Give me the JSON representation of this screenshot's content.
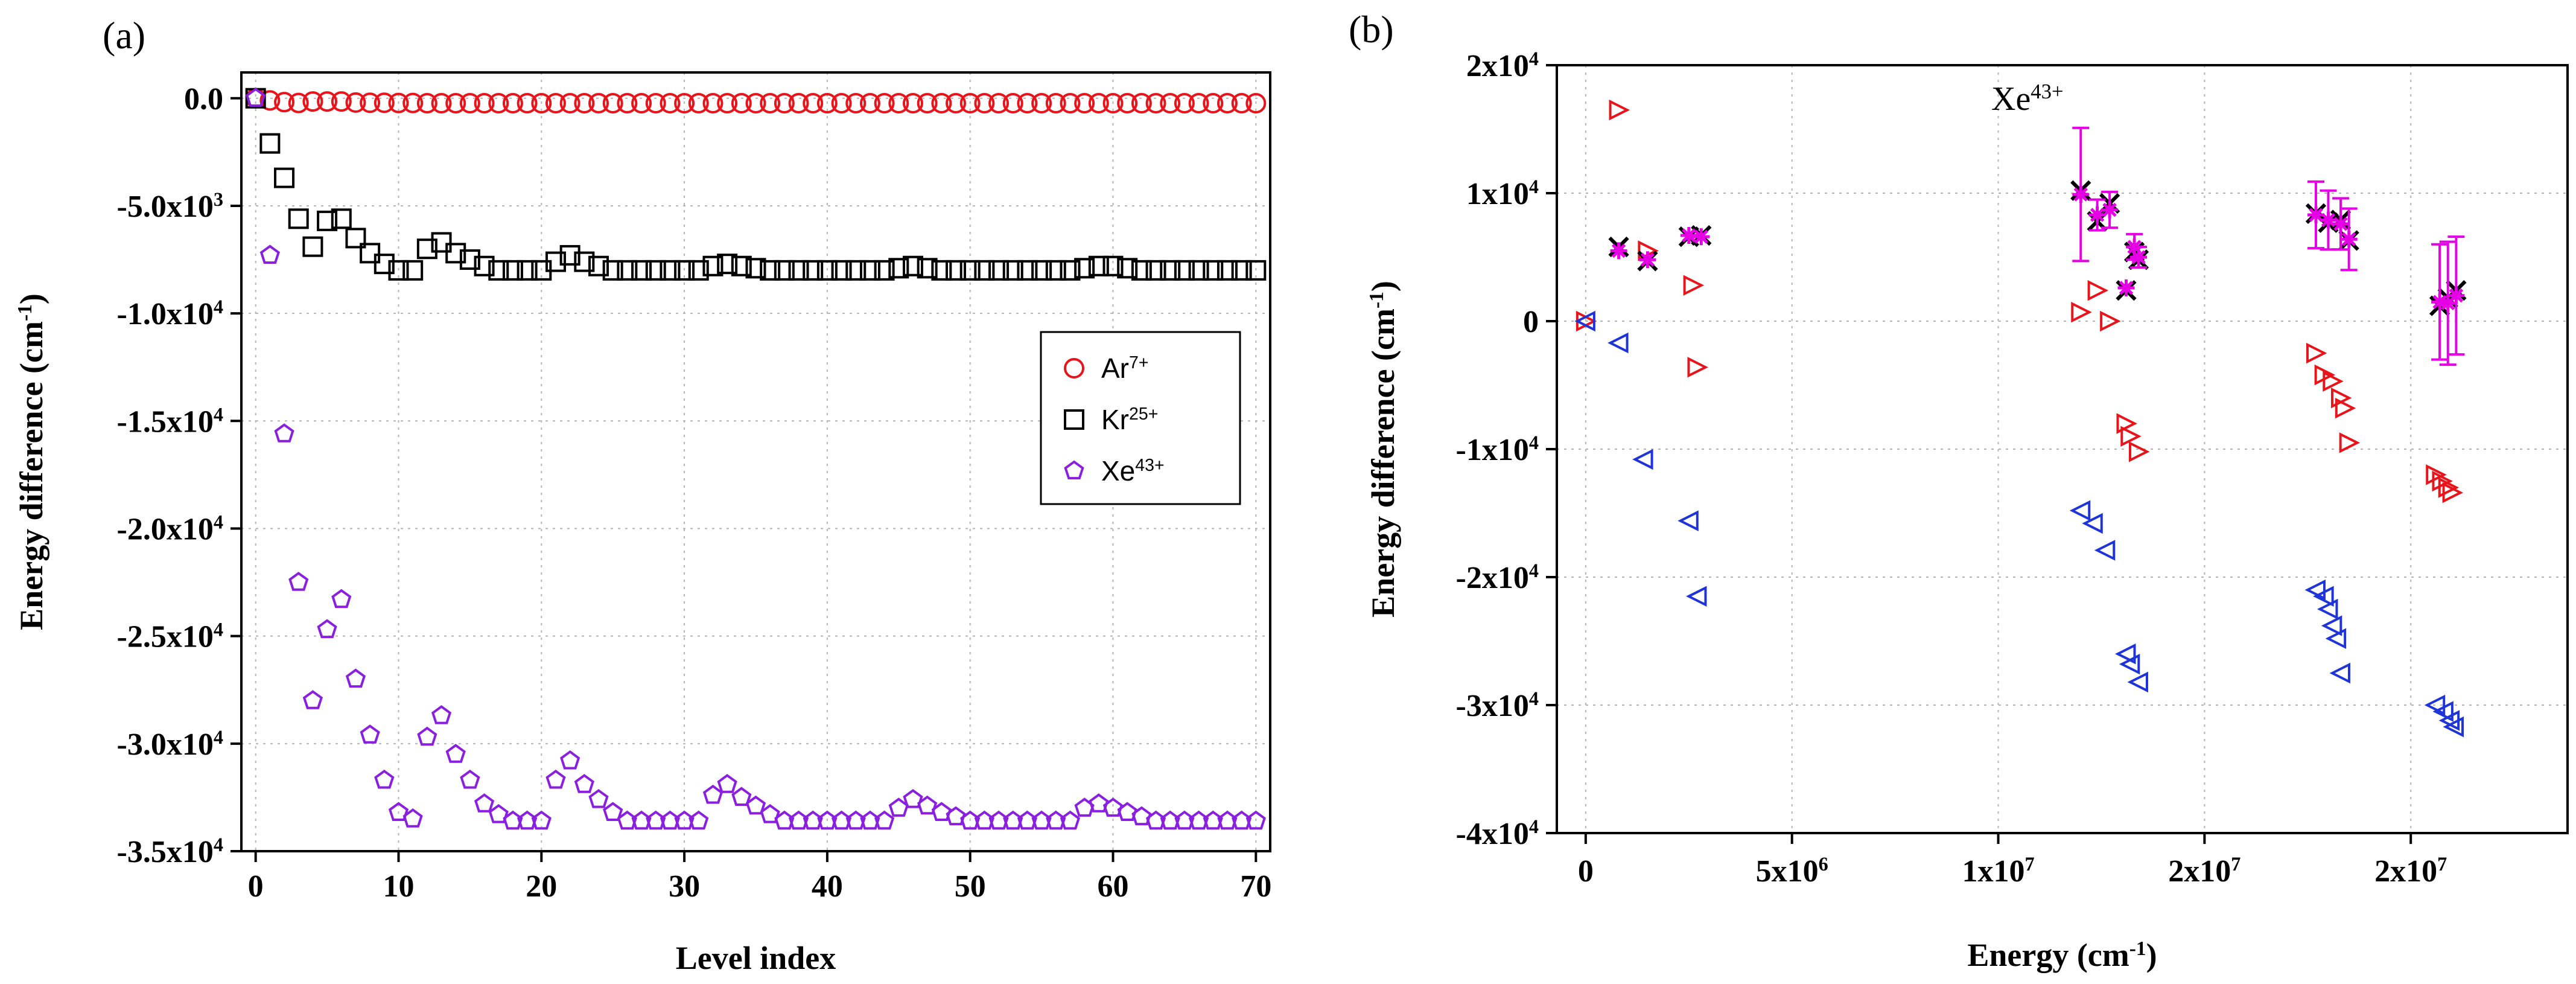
{
  "chart_data": [
    {
      "type": "scatter",
      "panel_label": "(a)",
      "title": "",
      "xlabel": "Level index",
      "ylabel": "Energy difference (cm",
      "ylabel_sup": "-1",
      "ylabel_close": ")",
      "xlim": [
        -1,
        71
      ],
      "ylim": [
        -35000,
        1200
      ],
      "x_ticks": [
        0,
        10,
        20,
        30,
        40,
        50,
        60,
        70
      ],
      "y_ticks": [
        {
          "value": 0,
          "label": "0.0",
          "sup": ""
        },
        {
          "value": -5000,
          "label": "-5.0x10",
          "sup": "3"
        },
        {
          "value": -10000,
          "label": "-1.0x10",
          "sup": "4"
        },
        {
          "value": -15000,
          "label": "-1.5x10",
          "sup": "4"
        },
        {
          "value": -20000,
          "label": "-2.0x10",
          "sup": "4"
        },
        {
          "value": -25000,
          "label": "-2.5x10",
          "sup": "4"
        },
        {
          "value": -30000,
          "label": "-3.0x10",
          "sup": "4"
        },
        {
          "value": -35000,
          "label": "-3.5x10",
          "sup": "4"
        }
      ],
      "grid": true,
      "legend_position": "right-middle",
      "series": [
        {
          "name": "Ar",
          "name_sup": "7+",
          "marker": "circle",
          "color": "#e8141b",
          "x": [
            0,
            1,
            2,
            3,
            4,
            5,
            6,
            7,
            8,
            9,
            10,
            11,
            12,
            13,
            14,
            15,
            16,
            17,
            18,
            19,
            20,
            21,
            22,
            23,
            24,
            25,
            26,
            27,
            28,
            29,
            30,
            31,
            32,
            33,
            34,
            35,
            36,
            37,
            38,
            39,
            40,
            41,
            42,
            43,
            44,
            45,
            46,
            47,
            48,
            49,
            50,
            51,
            52,
            53,
            54,
            55,
            56,
            57,
            58,
            59,
            60,
            61,
            62,
            63,
            64,
            65,
            66,
            67,
            68,
            69,
            70
          ],
          "y": [
            0,
            -100,
            -180,
            -220,
            -150,
            -150,
            -150,
            -200,
            -210,
            -210,
            -220,
            -220,
            -230,
            -230,
            -230,
            -230,
            -230,
            -230,
            -230,
            -230,
            -230,
            -230,
            -230,
            -230,
            -230,
            -230,
            -230,
            -230,
            -230,
            -230,
            -230,
            -230,
            -230,
            -230,
            -230,
            -230,
            -230,
            -230,
            -230,
            -230,
            -230,
            -230,
            -230,
            -230,
            -230,
            -230,
            -230,
            -230,
            -230,
            -230,
            -230,
            -230,
            -230,
            -230,
            -230,
            -230,
            -230,
            -230,
            -230,
            -230,
            -230,
            -230,
            -230,
            -230,
            -230,
            -230,
            -230,
            -230,
            -230,
            -230,
            -230
          ]
        },
        {
          "name": "Kr",
          "name_sup": "25+",
          "marker": "square",
          "color": "#000000",
          "x": [
            0,
            1,
            2,
            3,
            4,
            5,
            6,
            7,
            8,
            9,
            10,
            11,
            12,
            13,
            14,
            15,
            16,
            17,
            18,
            19,
            20,
            21,
            22,
            23,
            24,
            25,
            26,
            27,
            28,
            29,
            30,
            31,
            32,
            33,
            34,
            35,
            36,
            37,
            38,
            39,
            40,
            41,
            42,
            43,
            44,
            45,
            46,
            47,
            48,
            49,
            50,
            51,
            52,
            53,
            54,
            55,
            56,
            57,
            58,
            59,
            60,
            61,
            62,
            63,
            64,
            65,
            66,
            67,
            68,
            69,
            70
          ],
          "y": [
            0,
            -2100,
            -3700,
            -5600,
            -6900,
            -5700,
            -5600,
            -6500,
            -7200,
            -7700,
            -8000,
            -8000,
            -7000,
            -6700,
            -7200,
            -7500,
            -7800,
            -8000,
            -8000,
            -8000,
            -8000,
            -7600,
            -7300,
            -7600,
            -7800,
            -8000,
            -8000,
            -8000,
            -8000,
            -8000,
            -8000,
            -8000,
            -7800,
            -7700,
            -7800,
            -7900,
            -8000,
            -8000,
            -8000,
            -8000,
            -8000,
            -8000,
            -8000,
            -8000,
            -8000,
            -7900,
            -7800,
            -7900,
            -8000,
            -8000,
            -8000,
            -8000,
            -8000,
            -8000,
            -8000,
            -8000,
            -8000,
            -8000,
            -7900,
            -7800,
            -7800,
            -7900,
            -8000,
            -8000,
            -8000,
            -8000,
            -8000,
            -8000,
            -8000,
            -8000,
            -8000
          ]
        },
        {
          "name": "Xe",
          "name_sup": "43+",
          "marker": "pentagon",
          "color": "#8b1fe0",
          "x": [
            0,
            1,
            2,
            3,
            4,
            5,
            6,
            7,
            8,
            9,
            10,
            11,
            12,
            13,
            14,
            15,
            16,
            17,
            18,
            19,
            20,
            21,
            22,
            23,
            24,
            25,
            26,
            27,
            28,
            29,
            30,
            31,
            32,
            33,
            34,
            35,
            36,
            37,
            38,
            39,
            40,
            41,
            42,
            43,
            44,
            45,
            46,
            47,
            48,
            49,
            50,
            51,
            52,
            53,
            54,
            55,
            56,
            57,
            58,
            59,
            60,
            61,
            62,
            63,
            64,
            65,
            66,
            67,
            68,
            69,
            70
          ],
          "y": [
            0,
            -7300,
            -15600,
            -22500,
            -28000,
            -24700,
            -23300,
            -27000,
            -29600,
            -31700,
            -33200,
            -33500,
            -29700,
            -28700,
            -30500,
            -31700,
            -32800,
            -33300,
            -33600,
            -33600,
            -33600,
            -31700,
            -30800,
            -31900,
            -32600,
            -33200,
            -33600,
            -33600,
            -33600,
            -33600,
            -33600,
            -33600,
            -32400,
            -31900,
            -32500,
            -32900,
            -33300,
            -33600,
            -33600,
            -33600,
            -33600,
            -33600,
            -33600,
            -33600,
            -33600,
            -33000,
            -32600,
            -32900,
            -33200,
            -33400,
            -33600,
            -33600,
            -33600,
            -33600,
            -33600,
            -33600,
            -33600,
            -33600,
            -33000,
            -32800,
            -33000,
            -33200,
            -33400,
            -33600,
            -33600,
            -33600,
            -33600,
            -33600,
            -33600,
            -33600,
            -33600
          ]
        }
      ]
    },
    {
      "type": "scatter",
      "panel_label": "(b)",
      "title": "",
      "annotation": "Xe",
      "annotation_sup": "43+",
      "xlabel": "Energy (cm",
      "xlabel_sup": "-1",
      "xlabel_close": ")",
      "ylabel": "Energy difference (cm",
      "ylabel_sup": "-1",
      "ylabel_close": ")",
      "xlim": [
        -700000,
        23800000
      ],
      "ylim": [
        -40000,
        20000
      ],
      "x_ticks": [
        {
          "value": 0,
          "label": "0",
          "sup": ""
        },
        {
          "value": 5000000,
          "label": "5x10",
          "sup": "6"
        },
        {
          "value": 10000000,
          "label": "1x10",
          "sup": "7"
        },
        {
          "value": 15000000,
          "label": "2x10",
          "sup": "7"
        },
        {
          "value": 20000000,
          "label": "2x10",
          "sup": "7"
        }
      ],
      "y_ticks": [
        {
          "value": 20000,
          "label": "2x10",
          "sup": "4"
        },
        {
          "value": 10000,
          "label": "1x10",
          "sup": "4"
        },
        {
          "value": 0,
          "label": "0",
          "sup": ""
        },
        {
          "value": -10000,
          "label": "-1x10",
          "sup": "4"
        },
        {
          "value": -20000,
          "label": "-2x10",
          "sup": "4"
        },
        {
          "value": -30000,
          "label": "-3x10",
          "sup": "4"
        },
        {
          "value": -40000,
          "label": "-4x10",
          "sup": "4"
        }
      ],
      "grid": true,
      "series": [
        {
          "marker": "triangle-right",
          "color": "#e8141b",
          "x": [
            0,
            800000,
            1500000,
            2600000,
            2700000,
            12000000,
            12400000,
            12700000,
            13100000,
            13200000,
            13400000,
            17700000,
            17900000,
            18100000,
            18300000,
            18400000,
            18500000,
            20600000,
            20750000,
            20900000,
            21000000
          ],
          "y": [
            0,
            16500,
            5500,
            2800,
            -3600,
            700,
            2400,
            0,
            -8000,
            -9000,
            -10200,
            -2500,
            -4200,
            -4700,
            -6000,
            -6800,
            -9500,
            -12000,
            -12500,
            -13000,
            -13400
          ]
        },
        {
          "marker": "triangle-left",
          "color": "#1f34d8",
          "x": [
            0,
            800000,
            1400000,
            2500000,
            2700000,
            12000000,
            12300000,
            12600000,
            13100000,
            13200000,
            13400000,
            17700000,
            17900000,
            18000000,
            18100000,
            18200000,
            18300000,
            20600000,
            20800000,
            20950000,
            21050000
          ],
          "y": [
            0,
            -1700,
            -10800,
            -15600,
            -21500,
            -14800,
            -15800,
            -17900,
            -26000,
            -26800,
            -28200,
            -21000,
            -21500,
            -22500,
            -23800,
            -24800,
            -27500,
            -30000,
            -30500,
            -31200,
            -31700
          ]
        },
        {
          "marker": "cross",
          "color": "#000000",
          "x": [
            800000,
            1500000,
            2500000,
            2800000,
            12000000,
            12400000,
            12700000,
            13100000,
            13300000,
            13400000,
            17700000,
            18000000,
            18300000,
            18500000,
            20700000,
            20900000,
            21100000
          ],
          "y": [
            5800,
            4700,
            6600,
            6700,
            10200,
            7800,
            9200,
            2400,
            5400,
            4800,
            8400,
            7700,
            7900,
            6300,
            1200,
            1800,
            2400
          ]
        },
        {
          "marker": "star",
          "color": "#e600e6",
          "x": [
            800000,
            1500000,
            2500000,
            2800000,
            12000000,
            12400000,
            12700000,
            13100000,
            13300000,
            13400000,
            17700000,
            18000000,
            18300000,
            18500000,
            20700000,
            20900000,
            21100000
          ],
          "y": [
            5500,
            4800,
            6700,
            6600,
            9900,
            8300,
            8700,
            2600,
            5800,
            5000,
            8300,
            7900,
            7600,
            6400,
            1500,
            1400,
            2000
          ],
          "err": [
            0,
            0,
            0,
            0,
            5200,
            1200,
            1400,
            0,
            1000,
            800,
            2600,
            2300,
            2000,
            2400,
            4500,
            4800,
            4600
          ]
        }
      ]
    }
  ]
}
